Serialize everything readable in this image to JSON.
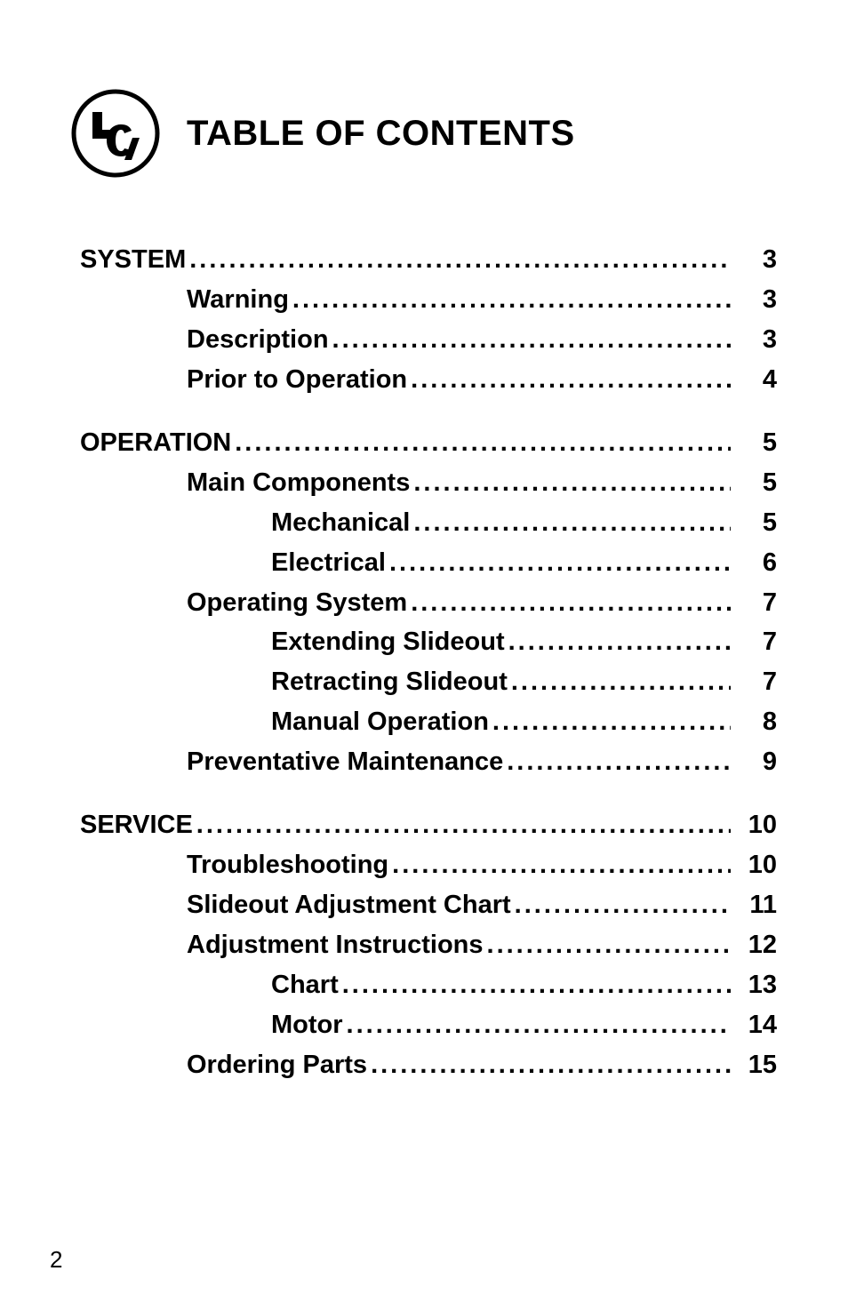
{
  "title": "TABLE OF CONTENTS",
  "footer_page": "2",
  "sections": [
    {
      "rows": [
        {
          "label": "SYSTEM",
          "page": "3",
          "level": 0
        },
        {
          "label": "Warning",
          "page": "3",
          "level": 1
        },
        {
          "label": "Description",
          "page": "3",
          "level": 1
        },
        {
          "label": "Prior to Operation",
          "page": "4",
          "level": 1
        }
      ]
    },
    {
      "rows": [
        {
          "label": "OPERATION",
          "page": "5",
          "level": 0
        },
        {
          "label": "Main Components",
          "page": "5",
          "level": 1
        },
        {
          "label": "Mechanical",
          "page": "5",
          "level": 2
        },
        {
          "label": "Electrical",
          "page": "6",
          "level": 2
        },
        {
          "label": "Operating System",
          "page": "7",
          "level": 1
        },
        {
          "label": "Extending Slideout ",
          "page": "7",
          "level": 2
        },
        {
          "label": "Retracting Slideout ",
          "page": "7",
          "level": 2
        },
        {
          "label": "Manual Operation",
          "page": "8",
          "level": 2
        },
        {
          "label": "Preventative Maintenance",
          "page": "9",
          "level": 1
        }
      ]
    },
    {
      "rows": [
        {
          "label": "SERVICE",
          "page": "10",
          "level": 0
        },
        {
          "label": "Troubleshooting",
          "page": "10",
          "level": 1
        },
        {
          "label": "Slideout Adjustment Chart",
          "page": "11",
          "level": 1
        },
        {
          "label": "Adjustment Instructions",
          "page": "12",
          "level": 1
        },
        {
          "label": "Chart",
          "page": "13",
          "level": 2
        },
        {
          "label": "Motor",
          "page": "14",
          "level": 2
        },
        {
          "label": "Ordering Parts",
          "page": "15",
          "level": 1
        }
      ]
    }
  ],
  "dots": "..................................................................................."
}
